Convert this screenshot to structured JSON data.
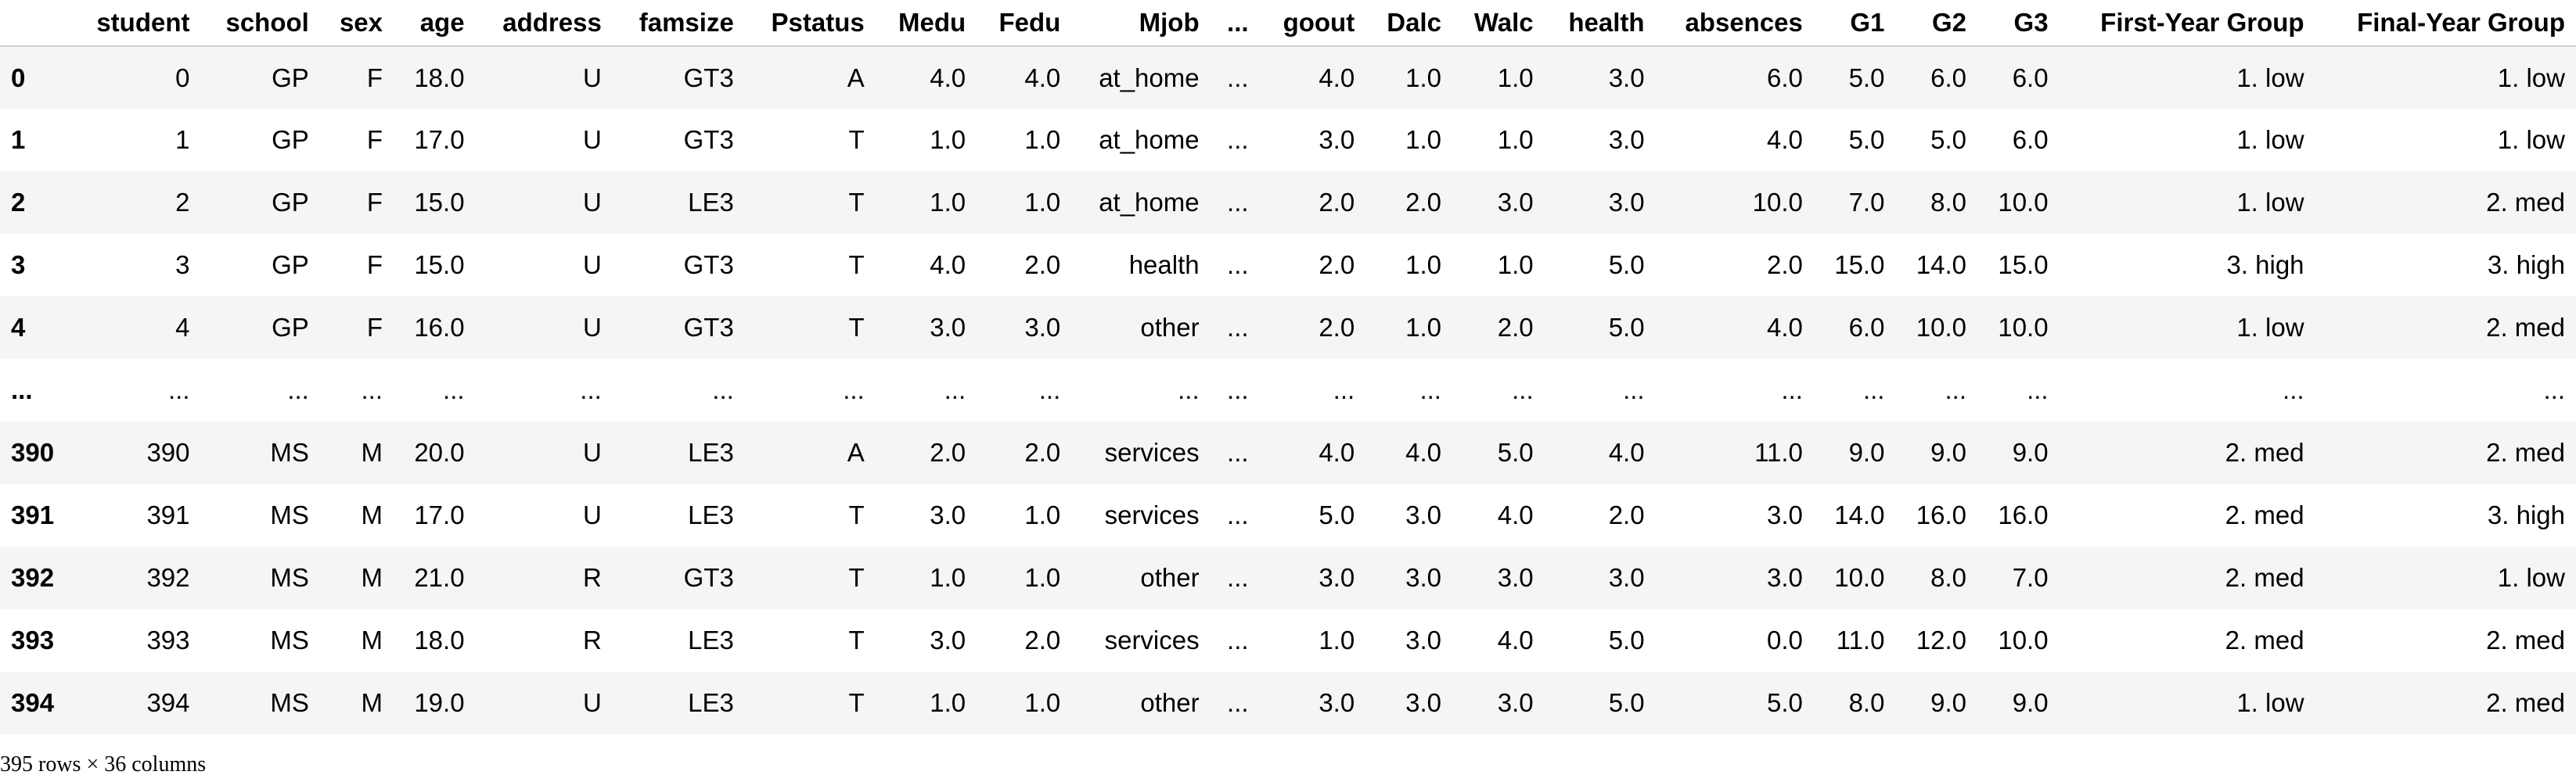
{
  "table": {
    "columns": [
      "",
      "student",
      "school",
      "sex",
      "age",
      "address",
      "famsize",
      "Pstatus",
      "Medu",
      "Fedu",
      "Mjob",
      "...",
      "goout",
      "Dalc",
      "Walc",
      "health",
      "absences",
      "G1",
      "G2",
      "G3",
      "First-Year Group",
      "Final-Year Group"
    ],
    "rows": [
      [
        "0",
        "0",
        "GP",
        "F",
        "18.0",
        "U",
        "GT3",
        "A",
        "4.0",
        "4.0",
        "at_home",
        "...",
        "4.0",
        "1.0",
        "1.0",
        "3.0",
        "6.0",
        "5.0",
        "6.0",
        "6.0",
        "1. low",
        "1. low"
      ],
      [
        "1",
        "1",
        "GP",
        "F",
        "17.0",
        "U",
        "GT3",
        "T",
        "1.0",
        "1.0",
        "at_home",
        "...",
        "3.0",
        "1.0",
        "1.0",
        "3.0",
        "4.0",
        "5.0",
        "5.0",
        "6.0",
        "1. low",
        "1. low"
      ],
      [
        "2",
        "2",
        "GP",
        "F",
        "15.0",
        "U",
        "LE3",
        "T",
        "1.0",
        "1.0",
        "at_home",
        "...",
        "2.0",
        "2.0",
        "3.0",
        "3.0",
        "10.0",
        "7.0",
        "8.0",
        "10.0",
        "1. low",
        "2. med"
      ],
      [
        "3",
        "3",
        "GP",
        "F",
        "15.0",
        "U",
        "GT3",
        "T",
        "4.0",
        "2.0",
        "health",
        "...",
        "2.0",
        "1.0",
        "1.0",
        "5.0",
        "2.0",
        "15.0",
        "14.0",
        "15.0",
        "3. high",
        "3. high"
      ],
      [
        "4",
        "4",
        "GP",
        "F",
        "16.0",
        "U",
        "GT3",
        "T",
        "3.0",
        "3.0",
        "other",
        "...",
        "2.0",
        "1.0",
        "2.0",
        "5.0",
        "4.0",
        "6.0",
        "10.0",
        "10.0",
        "1. low",
        "2. med"
      ],
      [
        "...",
        "...",
        "...",
        "...",
        "...",
        "...",
        "...",
        "...",
        "...",
        "...",
        "...",
        "...",
        "...",
        "...",
        "...",
        "...",
        "...",
        "...",
        "...",
        "...",
        "...",
        "..."
      ],
      [
        "390",
        "390",
        "MS",
        "M",
        "20.0",
        "U",
        "LE3",
        "A",
        "2.0",
        "2.0",
        "services",
        "...",
        "4.0",
        "4.0",
        "5.0",
        "4.0",
        "11.0",
        "9.0",
        "9.0",
        "9.0",
        "2. med",
        "2. med"
      ],
      [
        "391",
        "391",
        "MS",
        "M",
        "17.0",
        "U",
        "LE3",
        "T",
        "3.0",
        "1.0",
        "services",
        "...",
        "5.0",
        "3.0",
        "4.0",
        "2.0",
        "3.0",
        "14.0",
        "16.0",
        "16.0",
        "2. med",
        "3. high"
      ],
      [
        "392",
        "392",
        "MS",
        "M",
        "21.0",
        "R",
        "GT3",
        "T",
        "1.0",
        "1.0",
        "other",
        "...",
        "3.0",
        "3.0",
        "3.0",
        "3.0",
        "3.0",
        "10.0",
        "8.0",
        "7.0",
        "2. med",
        "1. low"
      ],
      [
        "393",
        "393",
        "MS",
        "M",
        "18.0",
        "R",
        "LE3",
        "T",
        "3.0",
        "2.0",
        "services",
        "...",
        "1.0",
        "3.0",
        "4.0",
        "5.0",
        "0.0",
        "11.0",
        "12.0",
        "10.0",
        "2. med",
        "2. med"
      ],
      [
        "394",
        "394",
        "MS",
        "M",
        "19.0",
        "U",
        "LE3",
        "T",
        "1.0",
        "1.0",
        "other",
        "...",
        "3.0",
        "3.0",
        "3.0",
        "5.0",
        "5.0",
        "8.0",
        "9.0",
        "9.0",
        "1. low",
        "2. med"
      ]
    ]
  },
  "footer": {
    "shape_text": "395 rows × 36 columns"
  }
}
